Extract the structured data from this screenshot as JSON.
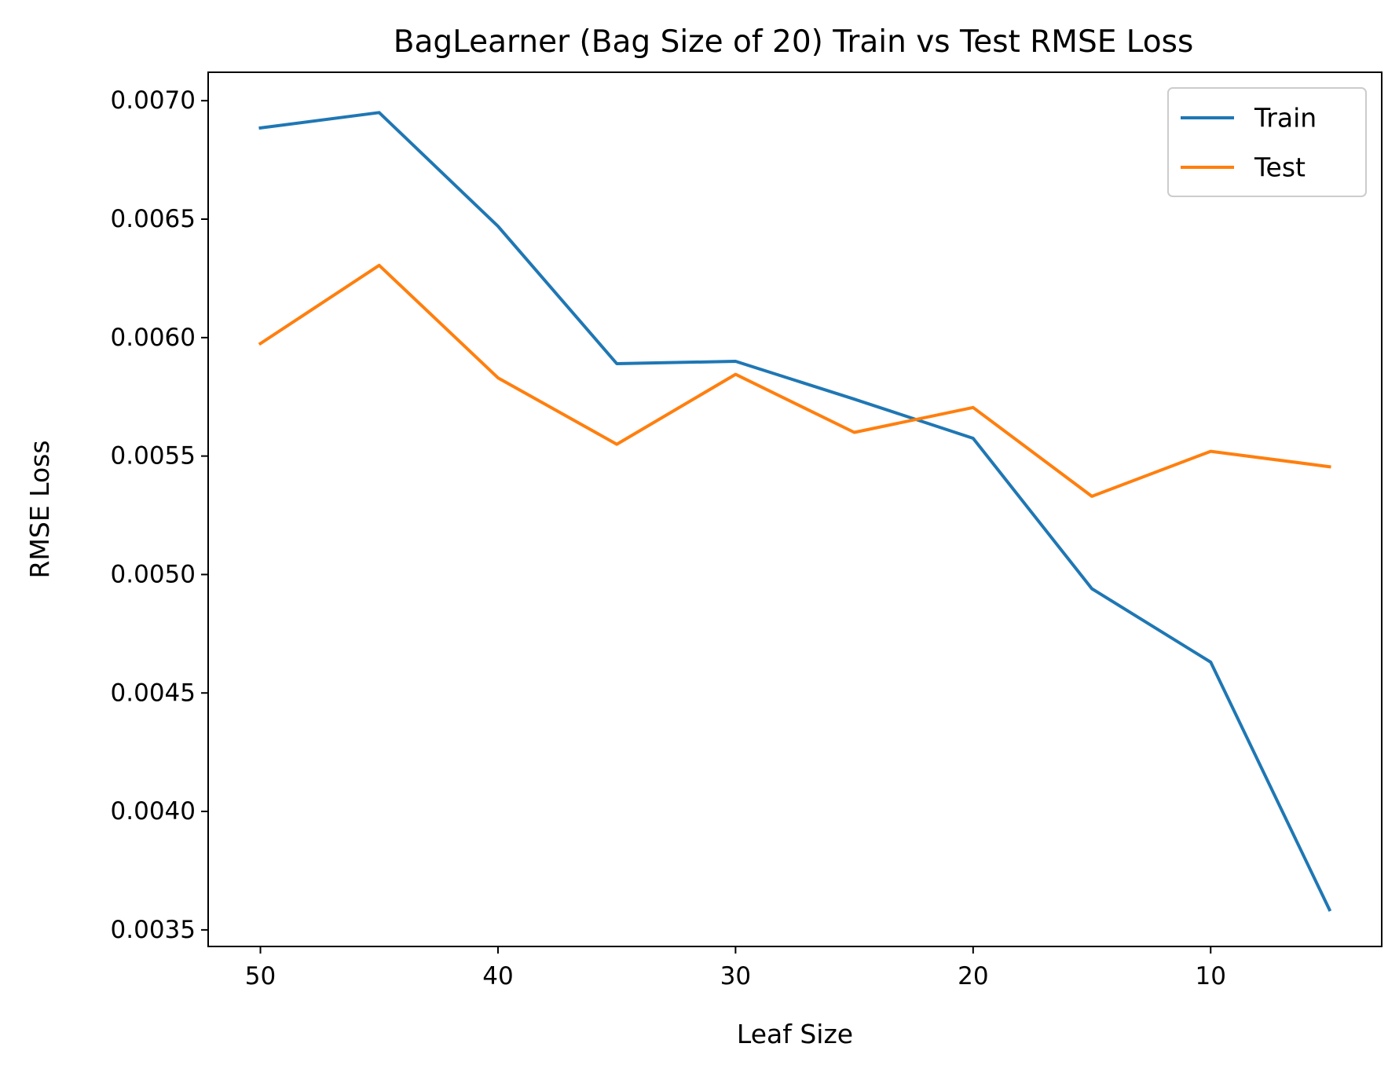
{
  "chart_data": {
    "type": "line",
    "title": "BagLearner (Bag Size of 20) Train vs Test RMSE Loss",
    "xlabel": "Leaf Size",
    "ylabel": "RMSE Loss",
    "x": [
      50,
      45,
      40,
      35,
      30,
      25,
      20,
      15,
      10,
      5
    ],
    "x_inverted": true,
    "xlim": [
      52.2,
      2.8
    ],
    "ylim": [
      0.00343,
      0.00712
    ],
    "xticks": [
      50,
      40,
      30,
      20,
      10
    ],
    "xtick_labels": [
      "50",
      "40",
      "30",
      "20",
      "10"
    ],
    "yticks": [
      0.0035,
      0.004,
      0.0045,
      0.005,
      0.0055,
      0.006,
      0.0065,
      0.007
    ],
    "ytick_labels": [
      "0.0035",
      "0.0040",
      "0.0045",
      "0.0050",
      "0.0055",
      "0.0060",
      "0.0065",
      "0.0070"
    ],
    "grid": false,
    "legend_position": "top-right",
    "series": [
      {
        "name": "Train",
        "color": "#1f77b4",
        "values": [
          0.006885,
          0.00695,
          0.00647,
          0.00589,
          0.0059,
          0.00574,
          0.005575,
          0.00494,
          0.00463,
          0.003585
        ]
      },
      {
        "name": "Test",
        "color": "#ff7f0e",
        "values": [
          0.005975,
          0.006305,
          0.00583,
          0.00555,
          0.005845,
          0.0056,
          0.005705,
          0.00533,
          0.00552,
          0.005455
        ]
      }
    ]
  }
}
